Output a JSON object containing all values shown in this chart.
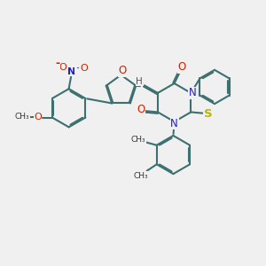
{
  "bg_color": "#f0f0f0",
  "bond_color": "#3d7070",
  "bond_width": 1.5,
  "dbo": 0.06,
  "fig_size": [
    3.0,
    3.0
  ],
  "dpi": 100,
  "xlim": [
    0,
    12
  ],
  "ylim": [
    0,
    12
  ]
}
